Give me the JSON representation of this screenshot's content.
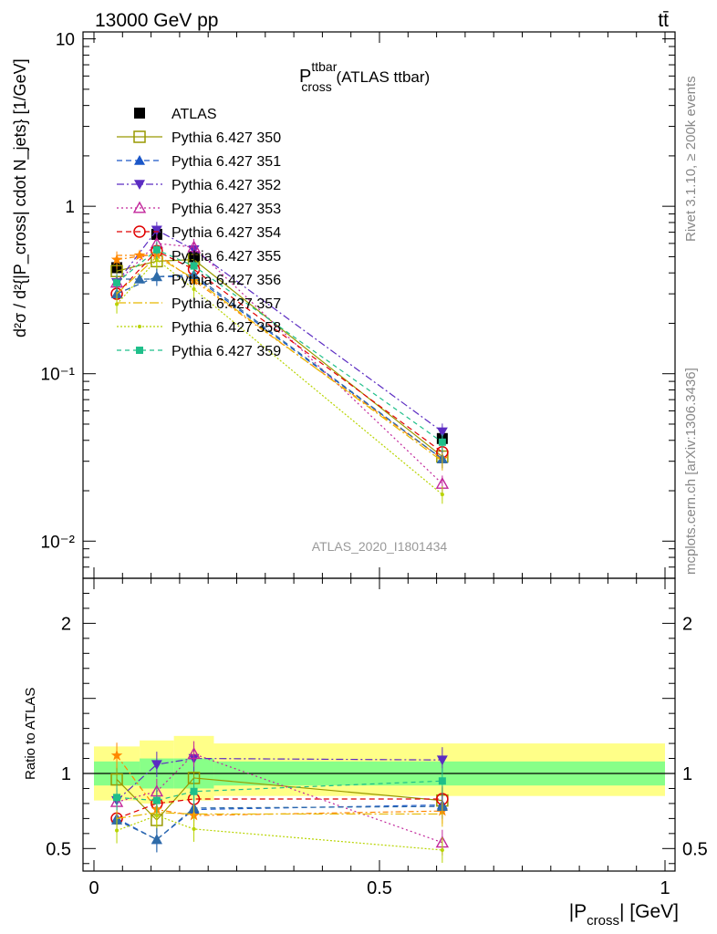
{
  "header": {
    "left": "13000 GeV pp",
    "right": "tt̄"
  },
  "plot_title": {
    "main": "P",
    "sup": "ttbar",
    "sub": "cross",
    "suffix": " (ATLAS ttbar)"
  },
  "side_labels": {
    "rivet": "Rivet 3.1.10, ≥ 200k events",
    "mcplots": "mcplots.cern.ch [arXiv:1306.3436]"
  },
  "watermark": "ATLAS_2020_I1801434",
  "y_axis_main": "d²σ / d²{|P_cross| cdot N_jets} [1/GeV]",
  "y_axis_ratio": "Ratio to ATLAS",
  "x_axis": {
    "main": "|P",
    "sub": "cross",
    "suffix": "| [GeV]"
  },
  "colors": {
    "band_outer": "#ffff88",
    "band_inner": "#88ff88"
  },
  "chart_data": {
    "type": "line",
    "x_scale": "linear",
    "xlim": [
      0,
      1
    ],
    "x_ticks": [
      "0",
      "0.5",
      "1"
    ],
    "main_panel": {
      "y_scale": "log",
      "ylim": [
        0.006,
        11
      ],
      "y_ticks": [
        "10",
        "1",
        "10⁻¹",
        "10⁻²"
      ]
    },
    "ratio_panel": {
      "ylim": [
        0.35,
        2.3
      ],
      "y_ticks": [
        "2",
        "1",
        "0.5"
      ]
    },
    "bins": [
      {
        "x": 0.04,
        "xlo": 0.0,
        "xhi": 0.08
      },
      {
        "x": 0.11,
        "xlo": 0.08,
        "xhi": 0.14
      },
      {
        "x": 0.175,
        "xlo": 0.14,
        "xhi": 0.21
      },
      {
        "x": 0.61,
        "xlo": 0.21,
        "xhi": 1.0
      }
    ],
    "bands_ratio": {
      "inner": [
        0.92,
        0.9,
        0.9,
        0.92
      ],
      "inner_hi": [
        1.08,
        1.1,
        1.1,
        1.08
      ],
      "outer": [
        0.82,
        0.8,
        0.82,
        0.85
      ],
      "outer_hi": [
        1.18,
        1.22,
        1.25,
        1.2
      ]
    },
    "series": [
      {
        "name": "ATLAS",
        "color": "#000000",
        "marker": "square-filled",
        "dash": "",
        "values": [
          0.43,
          0.68,
          0.5,
          0.041
        ],
        "ratio": [
          1,
          1,
          1,
          1
        ]
      },
      {
        "name": "Pythia 6.427 350",
        "color": "#999900",
        "marker": "square-open",
        "dash": "",
        "values": [
          0.41,
          0.47,
          0.48,
          0.032
        ],
        "ratio": [
          0.96,
          0.69,
          0.97,
          0.82
        ]
      },
      {
        "name": "Pythia 6.427 351",
        "color": "#1a56c8",
        "marker": "tri-up-filled",
        "dash": "6,4",
        "values": [
          0.3,
          0.38,
          0.38,
          0.031
        ],
        "ratio": [
          0.7,
          0.56,
          0.76,
          0.79
        ]
      },
      {
        "name": "Pythia 6.427 352",
        "color": "#5b2cc2",
        "marker": "tri-down-filled",
        "dash": "8,3,2,3",
        "values": [
          0.35,
          0.72,
          0.55,
          0.045
        ],
        "ratio": [
          0.82,
          1.06,
          1.1,
          1.09
        ]
      },
      {
        "name": "Pythia 6.427 353",
        "color": "#c2269b",
        "marker": "tri-up-open",
        "dash": "2,3",
        "values": [
          0.35,
          0.6,
          0.57,
          0.022
        ],
        "ratio": [
          0.81,
          0.88,
          1.13,
          0.54
        ]
      },
      {
        "name": "Pythia 6.427 354",
        "color": "#e00000",
        "marker": "circle-open",
        "dash": "6,4",
        "values": [
          0.3,
          0.54,
          0.42,
          0.034
        ],
        "ratio": [
          0.7,
          0.8,
          0.83,
          0.83
        ]
      },
      {
        "name": "Pythia 6.427 355",
        "color": "#ff8800",
        "marker": "star",
        "dash": "6,3,2,3",
        "values": [
          0.48,
          0.52,
          0.36,
          0.031
        ],
        "ratio": [
          1.12,
          0.76,
          0.72,
          0.75
        ]
      },
      {
        "name": "Pythia 6.427 356",
        "color": "#2e6ba8",
        "marker": "tri-up-filled",
        "dash": "6,4",
        "values": [
          0.3,
          0.38,
          0.39,
          0.031
        ],
        "ratio": [
          0.69,
          0.56,
          0.77,
          0.78
        ]
      },
      {
        "name": "Pythia 6.427 357",
        "color": "#e6b800",
        "marker": "none",
        "dash": "10,3,2,3",
        "values": [
          0.3,
          0.5,
          0.37,
          0.03
        ],
        "ratio": [
          0.7,
          0.74,
          0.73,
          0.73
        ]
      },
      {
        "name": "Pythia 6.427 358",
        "color": "#b8d400",
        "marker": "dot",
        "dash": "2,2",
        "values": [
          0.26,
          0.48,
          0.32,
          0.019
        ],
        "ratio": [
          0.62,
          0.72,
          0.63,
          0.49
        ]
      },
      {
        "name": "Pythia 6.427 359",
        "color": "#1fbf8a",
        "marker": "square-filled-small",
        "dash": "5,4",
        "values": [
          0.35,
          0.55,
          0.44,
          0.039
        ],
        "ratio": [
          0.84,
          0.82,
          0.88,
          0.95
        ]
      }
    ]
  }
}
